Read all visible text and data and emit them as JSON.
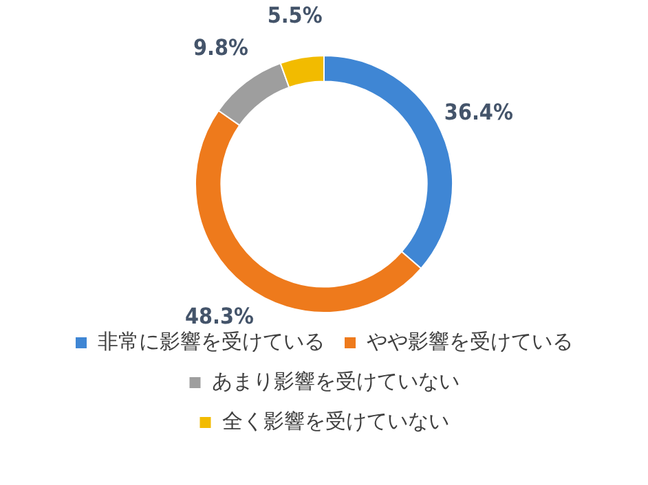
{
  "chart_data": {
    "type": "donut",
    "categories": [
      "非常に影響を受けている",
      "やや影響を受けている",
      "あまり影響を受けていない",
      "全く影響を受けていない"
    ],
    "values": [
      36.4,
      48.3,
      9.8,
      5.5
    ],
    "colors": [
      "#3f86d4",
      "#ee7a1c",
      "#9e9e9e",
      "#f2bb00"
    ],
    "value_labels": [
      "36.4%",
      "48.3%",
      "9.8%",
      "5.5%"
    ],
    "legend": "bottom"
  }
}
